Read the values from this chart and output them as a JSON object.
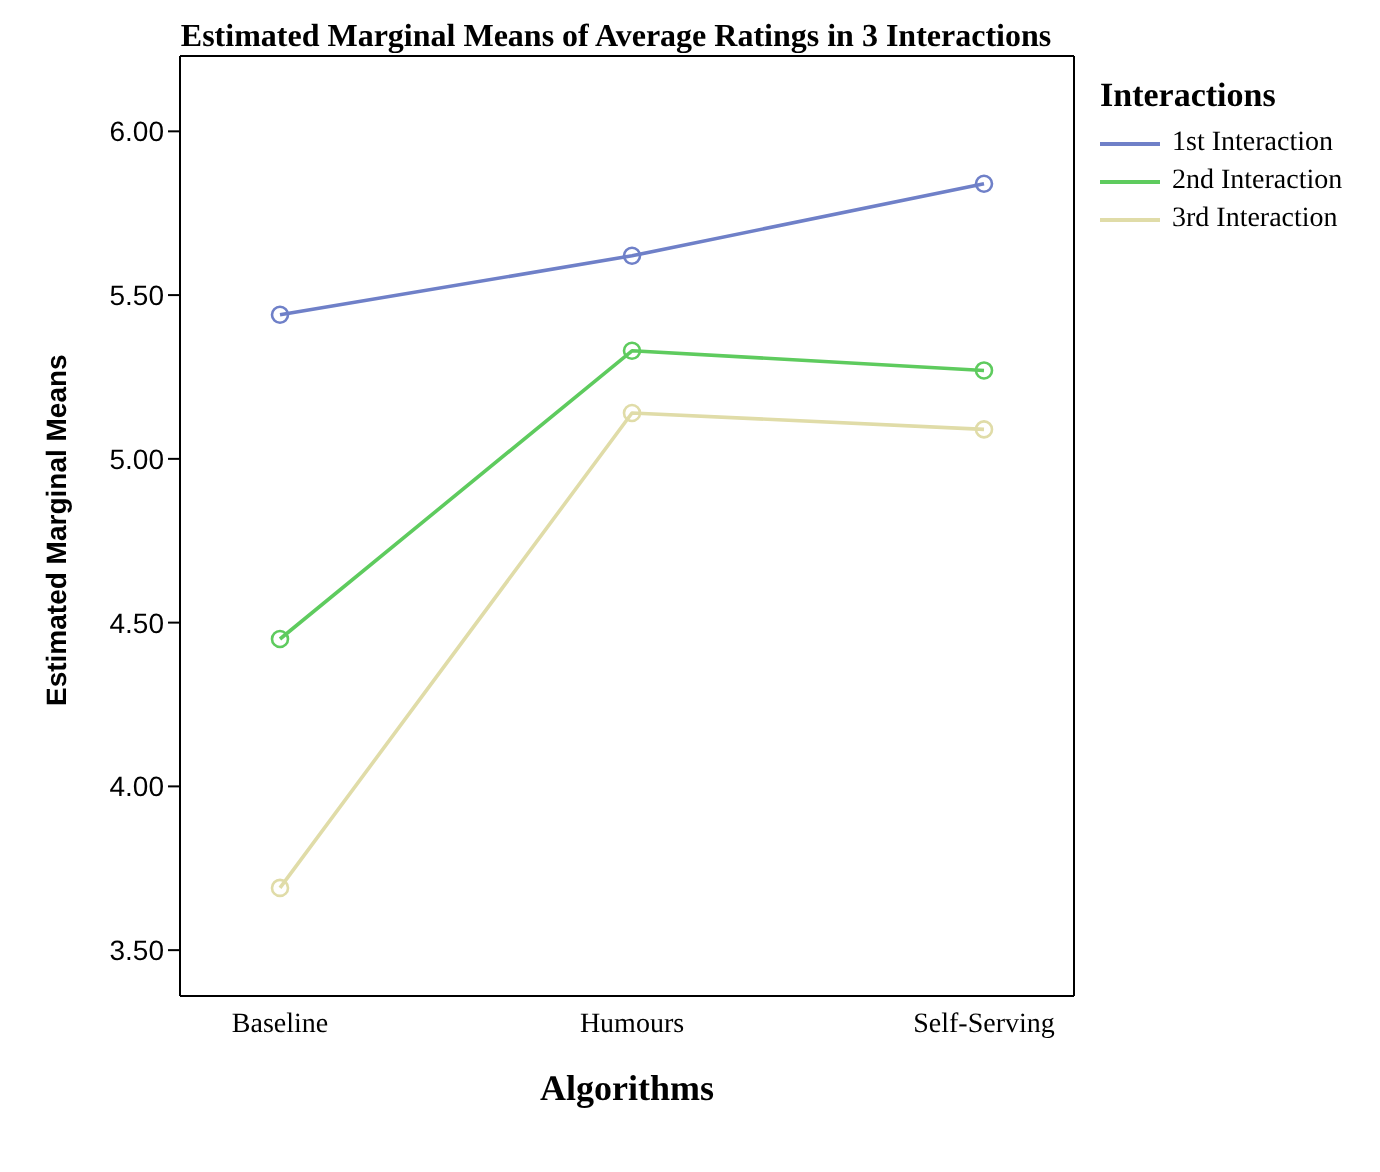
{
  "chart_data": {
    "type": "line",
    "title": "Estimated Marginal Means of Average Ratings in 3 Interactions",
    "xlabel": "Algorithms",
    "ylabel": "Estimated Marginal Means",
    "legend_title": "Interactions",
    "categories": [
      "Baseline",
      "Humours",
      "Self-Serving"
    ],
    "series": [
      {
        "name": "1st Interaction",
        "color": "#6f80c8",
        "values": [
          5.44,
          5.62,
          5.84
        ]
      },
      {
        "name": "2nd Interaction",
        "color": "#5ecb5e",
        "values": [
          4.45,
          5.33,
          5.27
        ]
      },
      {
        "name": "3rd Interaction",
        "color": "#e0dca8",
        "values": [
          3.69,
          5.14,
          5.09
        ]
      }
    ],
    "ylim": [
      3.36,
      6.23
    ],
    "yticks": [
      {
        "value": 3.5,
        "label": "3.50"
      },
      {
        "value": 4,
        "label": "4.00"
      },
      {
        "value": 4.5,
        "label": "4.50"
      },
      {
        "value": 5,
        "label": "5.00"
      },
      {
        "value": 5.5,
        "label": "5.50"
      },
      {
        "value": 6,
        "label": "6.00"
      }
    ],
    "grid": false,
    "legend": "top right",
    "marker": "circle",
    "line_style": "solid"
  }
}
